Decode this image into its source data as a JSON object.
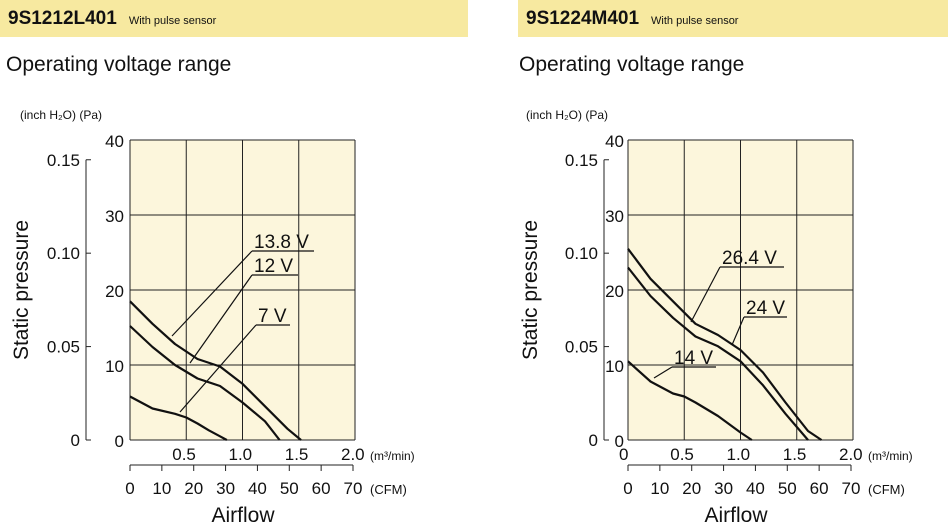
{
  "colors": {
    "header_bg": "#f7e9a0",
    "plot_bg": "#fcf6dc",
    "line": "#111111"
  },
  "panels": [
    {
      "model": "9S1212L401",
      "feature": "With pulse sensor",
      "subtitle": "Operating voltage range"
    },
    {
      "model": "9S1224M401",
      "feature": "With pulse sensor",
      "subtitle": "Operating voltage range"
    }
  ],
  "chart_data": [
    {
      "type": "line",
      "title": "Operating voltage range",
      "xlabel": "Airflow",
      "ylabel": "Static pressure",
      "x_unit": "(m³/min)",
      "x2_unit": "(CFM)",
      "y_unit": "(Pa)",
      "y2_unit": "(inch H₂O)",
      "xlim": [
        0,
        2.0
      ],
      "ylim": [
        0,
        40
      ],
      "x_ticks": [
        "0.5",
        "1.0",
        "1.5",
        "2.0"
      ],
      "x_tick_values": [
        0.5,
        1.0,
        1.5,
        2.0
      ],
      "cfm_ticks": [
        "0",
        "10",
        "20",
        "30",
        "40",
        "50",
        "60",
        "70"
      ],
      "cfm_tick_values": [
        0,
        10,
        20,
        30,
        40,
        50,
        60,
        70
      ],
      "y_ticks": [
        "0",
        "10",
        "20",
        "30",
        "40"
      ],
      "y_tick_values": [
        0,
        10,
        20,
        30,
        40
      ],
      "inch_ticks": [
        "0",
        "0.05",
        "0.10",
        "0.15"
      ],
      "inch_tick_values": [
        0,
        0.05,
        0.1,
        0.15
      ],
      "grid": true,
      "series": [
        {
          "name": "13.8 V",
          "x": [
            0,
            0.2,
            0.4,
            0.6,
            0.8,
            1.0,
            1.2,
            1.4,
            1.52
          ],
          "y": [
            18.5,
            15.5,
            12.8,
            10.8,
            9.8,
            7.5,
            4.5,
            1.5,
            0
          ]
        },
        {
          "name": "12 V",
          "x": [
            0,
            0.2,
            0.4,
            0.6,
            0.8,
            1.0,
            1.2,
            1.33
          ],
          "y": [
            15.2,
            12.4,
            10.0,
            8.2,
            7.2,
            5.0,
            2.5,
            0
          ]
        },
        {
          "name": "7 V",
          "x": [
            0,
            0.2,
            0.4,
            0.5,
            0.6,
            0.7,
            0.8,
            0.86
          ],
          "y": [
            5.8,
            4.2,
            3.5,
            3.0,
            2.2,
            1.3,
            0.5,
            0
          ]
        }
      ]
    },
    {
      "type": "line",
      "title": "Operating voltage range",
      "xlabel": "Airflow",
      "ylabel": "Static pressure",
      "x_unit": "(m³/min)",
      "x2_unit": "(CFM)",
      "y_unit": "(Pa)",
      "y2_unit": "(inch H₂O)",
      "xlim": [
        0,
        2.0
      ],
      "ylim": [
        0,
        40
      ],
      "x_ticks": [
        "0.5",
        "1.0",
        "1.5",
        "2.0"
      ],
      "x_tick_values": [
        0.5,
        1.0,
        1.5,
        2.0
      ],
      "x_zero_label": "0",
      "cfm_ticks": [
        "0",
        "10",
        "20",
        "30",
        "40",
        "50",
        "60",
        "70"
      ],
      "cfm_tick_values": [
        0,
        10,
        20,
        30,
        40,
        50,
        60,
        70
      ],
      "y_ticks": [
        "0",
        "10",
        "20",
        "30",
        "40"
      ],
      "y_tick_values": [
        0,
        10,
        20,
        30,
        40
      ],
      "inch_ticks": [
        "0",
        "0.05",
        "0.10",
        "0.15"
      ],
      "inch_tick_values": [
        0,
        0.05,
        0.1,
        0.15
      ],
      "grid": true,
      "series": [
        {
          "name": "26.4 V",
          "x": [
            0,
            0.2,
            0.4,
            0.6,
            0.8,
            1.0,
            1.2,
            1.4,
            1.6,
            1.72
          ],
          "y": [
            25.5,
            21.5,
            18.5,
            15.5,
            14.0,
            12.0,
            9.0,
            5.0,
            1.2,
            0
          ]
        },
        {
          "name": "24 V",
          "x": [
            0,
            0.2,
            0.4,
            0.6,
            0.8,
            1.0,
            1.2,
            1.4,
            1.6
          ],
          "y": [
            23.0,
            19.2,
            16.3,
            13.8,
            12.5,
            10.5,
            7.3,
            3.5,
            0
          ]
        },
        {
          "name": "14 V",
          "x": [
            0,
            0.2,
            0.4,
            0.5,
            0.6,
            0.8,
            1.0,
            1.1
          ],
          "y": [
            10.5,
            7.8,
            6.2,
            5.8,
            5.0,
            3.2,
            1.0,
            0
          ]
        }
      ]
    }
  ]
}
